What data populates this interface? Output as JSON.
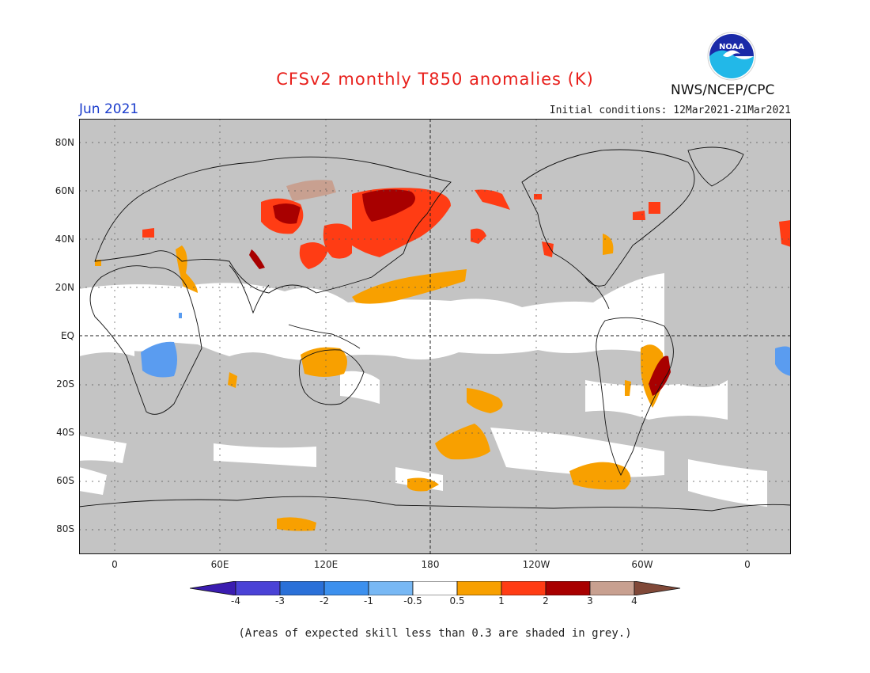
{
  "header": {
    "title": "CFSv2 monthly T850 anomalies (K)",
    "month": "Jun 2021",
    "initial_conditions": "Initial conditions: 12Mar2021-21Mar2021",
    "organization": "NWS/NCEP/CPC",
    "logo_text": "NOAA"
  },
  "map": {
    "lat_labels": [
      "80N",
      "60N",
      "40N",
      "20N",
      "EQ",
      "20S",
      "40S",
      "60S",
      "80S"
    ],
    "lon_labels": [
      "0",
      "60E",
      "120E",
      "180",
      "120W",
      "60W",
      "0"
    ],
    "colors": {
      "grey": "#c4c4c4",
      "white": "#ffffff",
      "orange": "#f8a000",
      "red": "#ff3c14",
      "darkred": "#a80000",
      "tan": "#c8a090",
      "blue": "#5a9cf0"
    }
  },
  "colorbar": {
    "ticks": [
      "-4",
      "-3",
      "-2",
      "-1",
      "-0.5",
      "0.5",
      "1",
      "2",
      "3",
      "4"
    ],
    "colors": [
      "#3a1cb0",
      "#4a42d6",
      "#2a70d8",
      "#3c90ee",
      "#78b8f4",
      "#ffffff",
      "#f8a000",
      "#ff3c14",
      "#a80000",
      "#c8a090",
      "#804838"
    ]
  },
  "footnote": "(Areas of expected skill less than 0.3 are shaded in grey.)"
}
